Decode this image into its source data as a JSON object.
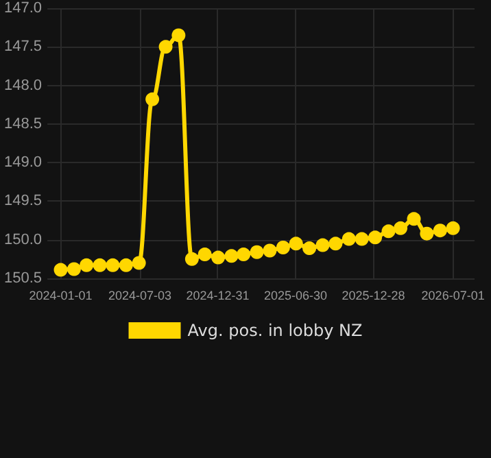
{
  "chart_data": {
    "type": "line",
    "x": [
      "2024-01-01",
      "2024-02-01",
      "2024-03-01",
      "2024-04-01",
      "2024-05-01",
      "2024-06-01",
      "2024-07-01",
      "2024-08-01",
      "2024-09-01",
      "2024-10-01",
      "2024-11-01",
      "2024-12-01",
      "2025-01-01",
      "2025-02-01",
      "2025-03-01",
      "2025-04-01",
      "2025-05-01",
      "2025-06-01",
      "2025-07-01",
      "2025-08-01",
      "2025-09-01",
      "2025-10-01",
      "2025-11-01",
      "2025-12-01",
      "2026-01-01",
      "2026-02-01",
      "2026-03-01",
      "2026-04-01",
      "2026-05-01",
      "2026-06-01",
      "2026-07-01"
    ],
    "series": [
      {
        "name": "Avg. pos. in lobby NZ",
        "color": "#ffd700",
        "values": [
          150.39,
          150.38,
          150.33,
          150.33,
          150.33,
          150.33,
          150.3,
          148.18,
          147.5,
          147.35,
          150.25,
          150.19,
          150.23,
          150.21,
          150.19,
          150.16,
          150.14,
          150.1,
          150.05,
          150.11,
          150.07,
          150.05,
          149.99,
          149.99,
          149.97,
          149.89,
          149.85,
          149.73,
          149.92,
          149.88,
          149.85
        ]
      }
    ],
    "ylim": [
      150.5,
      147.0
    ],
    "yticks": [
      {
        "value": 147.0,
        "label": "147.0"
      },
      {
        "value": 147.5,
        "label": "147.5"
      },
      {
        "value": 148.0,
        "label": "148.0"
      },
      {
        "value": 148.5,
        "label": "148.5"
      },
      {
        "value": 149.0,
        "label": "149.0"
      },
      {
        "value": 149.5,
        "label": "149.5"
      },
      {
        "value": 150.0,
        "label": "150.0"
      },
      {
        "value": 150.5,
        "label": "150.5"
      }
    ],
    "xlim": [
      "2023-12-01",
      "2026-08-20"
    ],
    "xticks": [
      "2024-01-01",
      "2024-07-03",
      "2024-12-31",
      "2025-06-30",
      "2025-12-28",
      "2026-07-01"
    ],
    "grid": true,
    "legend": "bottom",
    "marker": "circle",
    "line_style": "solid"
  }
}
